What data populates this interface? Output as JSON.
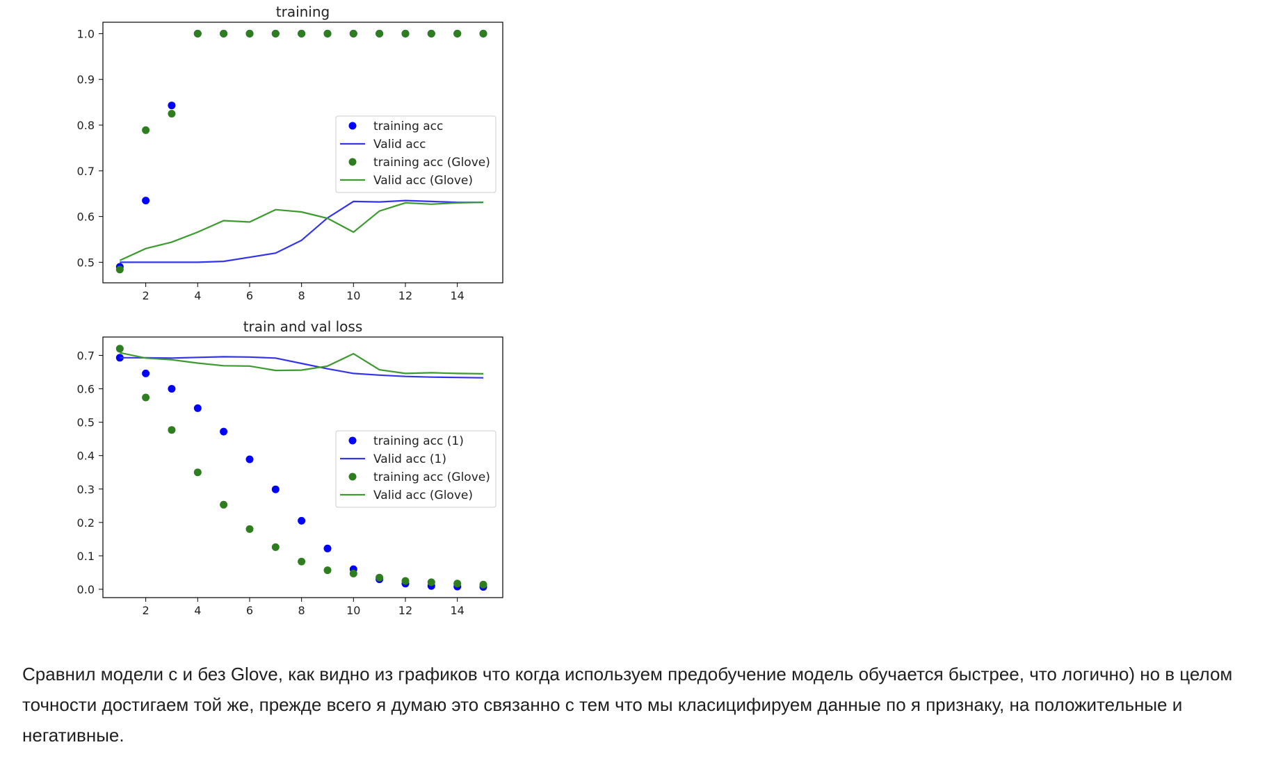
{
  "chart_data": [
    {
      "type": "line",
      "title": "training",
      "xlabel": "",
      "ylabel": "",
      "xlim": [
        0.35,
        15.75
      ],
      "ylim": [
        0.455,
        1.025
      ],
      "xticks": [
        "2",
        "4",
        "6",
        "8",
        "10",
        "12",
        "14"
      ],
      "yticks": [
        "0.5",
        "0.6",
        "0.7",
        "0.8",
        "0.9",
        "1.0"
      ],
      "legend_position": "center-right",
      "grid": false,
      "x": [
        1,
        2,
        3,
        4,
        5,
        6,
        7,
        8,
        9,
        10,
        11,
        12,
        13,
        14,
        15
      ],
      "series": [
        {
          "name": "training acc",
          "style": "scatter",
          "color": "#0000ff",
          "values": [
            0.49,
            0.635,
            0.843,
            1.0,
            1.0,
            1.0,
            1.0,
            1.0,
            1.0,
            1.0,
            1.0,
            1.0,
            1.0,
            1.0,
            1.0
          ]
        },
        {
          "name": "Valid acc",
          "style": "line",
          "color": "#3333ee",
          "values": [
            0.5,
            0.5,
            0.5,
            0.5,
            0.502,
            0.511,
            0.52,
            0.548,
            0.597,
            0.633,
            0.632,
            0.635,
            0.633,
            0.631,
            0.631
          ]
        },
        {
          "name": "training acc (Glove)",
          "style": "scatter",
          "color": "#2e7d1f",
          "values": [
            0.484,
            0.789,
            0.825,
            1.0,
            1.0,
            1.0,
            1.0,
            1.0,
            1.0,
            1.0,
            1.0,
            1.0,
            1.0,
            1.0,
            1.0
          ]
        },
        {
          "name": "Valid acc (Glove)",
          "style": "line",
          "color": "#3d9a2f",
          "values": [
            0.504,
            0.53,
            0.544,
            0.566,
            0.591,
            0.588,
            0.615,
            0.61,
            0.596,
            0.566,
            0.612,
            0.63,
            0.627,
            0.63,
            0.631
          ]
        }
      ]
    },
    {
      "type": "line",
      "title": "train and val loss",
      "xlabel": "",
      "ylabel": "",
      "xlim": [
        0.35,
        15.75
      ],
      "ylim": [
        -0.025,
        0.755
      ],
      "xticks": [
        "2",
        "4",
        "6",
        "8",
        "10",
        "12",
        "14"
      ],
      "yticks": [
        "0.0",
        "0.1",
        "0.2",
        "0.3",
        "0.4",
        "0.5",
        "0.6",
        "0.7"
      ],
      "legend_position": "center-right",
      "grid": false,
      "x": [
        1,
        2,
        3,
        4,
        5,
        6,
        7,
        8,
        9,
        10,
        11,
        12,
        13,
        14,
        15
      ],
      "series": [
        {
          "name": "training acc (1)",
          "style": "scatter",
          "color": "#0000ff",
          "values": [
            0.693,
            0.646,
            0.6,
            0.542,
            0.472,
            0.389,
            0.299,
            0.205,
            0.122,
            0.06,
            0.03,
            0.017,
            0.01,
            0.008,
            0.007
          ]
        },
        {
          "name": "Valid acc (1)",
          "style": "line",
          "color": "#3333ee",
          "values": [
            0.693,
            0.693,
            0.692,
            0.694,
            0.696,
            0.695,
            0.692,
            0.676,
            0.66,
            0.646,
            0.641,
            0.637,
            0.635,
            0.634,
            0.633
          ]
        },
        {
          "name": "training acc (Glove)",
          "style": "scatter",
          "color": "#2e7d1f",
          "values": [
            0.72,
            0.574,
            0.477,
            0.35,
            0.253,
            0.18,
            0.126,
            0.083,
            0.057,
            0.047,
            0.035,
            0.025,
            0.021,
            0.017,
            0.014
          ]
        },
        {
          "name": "Valid acc (Glove)",
          "style": "line",
          "color": "#3d9a2f",
          "values": [
            0.708,
            0.692,
            0.687,
            0.677,
            0.669,
            0.668,
            0.655,
            0.656,
            0.668,
            0.705,
            0.657,
            0.646,
            0.648,
            0.646,
            0.645
          ]
        }
      ]
    }
  ],
  "comment": {
    "text": "Сравнил модели с и без Glove, как видно из графиков что когда используем предобучение модель обучается быстрее, что логично) но в целом точности достигаем той же, прежде всего я думаю это связанно с тем что мы класицифируем данные по я признаку, на положительные и негативные."
  }
}
